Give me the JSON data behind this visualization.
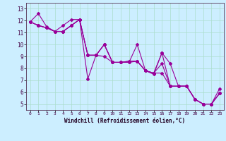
{
  "xlabel": "Windchill (Refroidissement éolien,°C)",
  "background_color": "#cceeff",
  "line_color": "#990099",
  "grid_color": "#aaddcc",
  "xlim": [
    -0.5,
    23.5
  ],
  "ylim": [
    4.5,
    13.5
  ],
  "xticks": [
    0,
    1,
    2,
    3,
    4,
    5,
    6,
    7,
    8,
    9,
    10,
    11,
    12,
    13,
    14,
    15,
    16,
    17,
    18,
    19,
    20,
    21,
    22,
    23
  ],
  "yticks": [
    5,
    6,
    7,
    8,
    9,
    10,
    11,
    12,
    13
  ],
  "series": [
    [
      11.9,
      12.6,
      11.5,
      11.1,
      11.6,
      12.1,
      12.1,
      7.1,
      9.1,
      9.0,
      8.5,
      8.5,
      8.5,
      8.6,
      7.8,
      7.5,
      9.3,
      8.4,
      6.5,
      6.5,
      5.4,
      5.0,
      5.0,
      5.9
    ],
    [
      11.9,
      11.6,
      11.4,
      11.1,
      11.1,
      11.6,
      12.1,
      9.1,
      9.1,
      10.0,
      8.5,
      8.5,
      8.5,
      10.0,
      7.8,
      7.6,
      7.6,
      6.5,
      6.5,
      6.5,
      5.4,
      5.0,
      5.0,
      6.3
    ],
    [
      11.9,
      11.6,
      11.4,
      11.1,
      11.1,
      11.6,
      12.1,
      9.1,
      9.1,
      10.0,
      8.5,
      8.5,
      8.6,
      8.6,
      7.8,
      7.6,
      9.3,
      6.5,
      6.5,
      6.5,
      5.4,
      5.0,
      5.0,
      5.9
    ],
    [
      11.9,
      11.6,
      11.4,
      11.1,
      11.1,
      11.6,
      12.1,
      9.1,
      9.1,
      10.0,
      8.5,
      8.5,
      8.6,
      8.6,
      7.8,
      7.6,
      8.4,
      6.5,
      6.5,
      6.5,
      5.4,
      5.0,
      5.0,
      5.9
    ]
  ]
}
